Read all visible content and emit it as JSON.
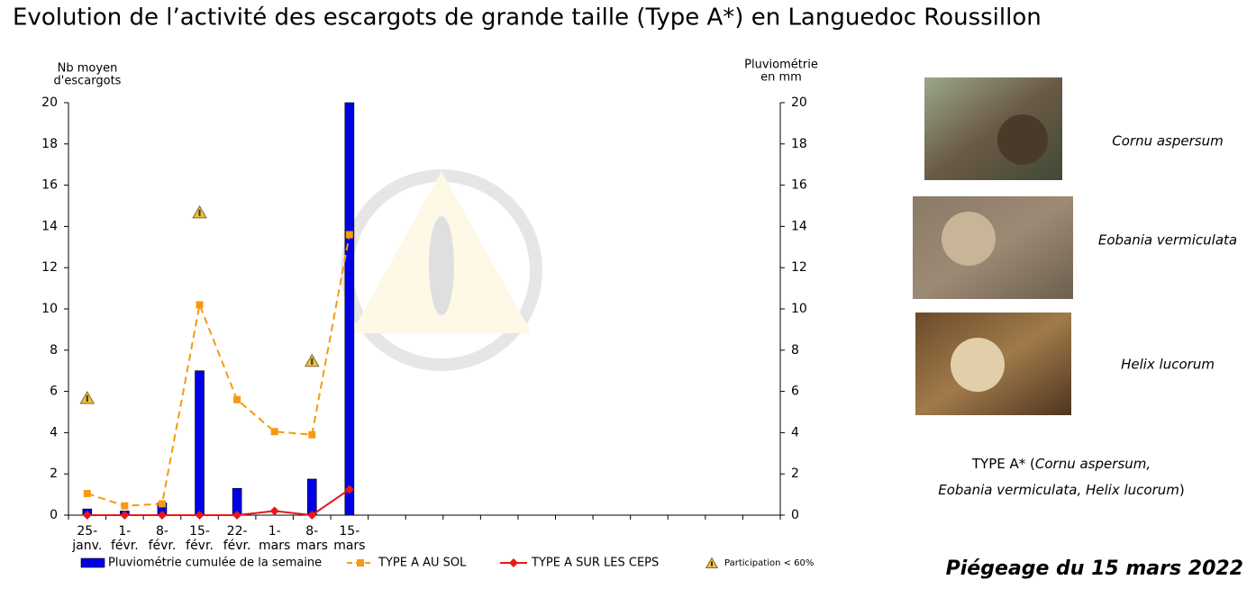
{
  "chart_data": {
    "type": "bar",
    "title": "Evolution de l’activité des escargots de grande taille (Type A*) en Languedoc Roussillon",
    "y_label": [
      "Nb moyen",
      "d'escargots"
    ],
    "y2_label": [
      "Pluviométrie",
      "en mm"
    ],
    "categories": [
      [
        "25-",
        "janv."
      ],
      [
        "1-",
        "févr."
      ],
      [
        "8-",
        "févr."
      ],
      [
        "15-",
        "févr."
      ],
      [
        "22-",
        "févr."
      ],
      [
        "1-",
        "mars"
      ],
      [
        "8-",
        "mars"
      ],
      [
        "15-",
        "mars"
      ],
      null,
      null,
      null,
      null,
      null,
      null,
      null,
      null,
      null,
      null,
      null
    ],
    "ylim": [
      0,
      20
    ],
    "yticks": [
      0,
      2,
      4,
      6,
      8,
      10,
      12,
      14,
      16,
      18,
      20
    ],
    "y2lim": [
      0,
      20
    ],
    "y2ticks": [
      0,
      2,
      4,
      6,
      8,
      10,
      12,
      14,
      16,
      18,
      20
    ],
    "series": [
      {
        "name": "Pluviométrie cumulée de la semaine",
        "kind": "bar",
        "axis": "y2",
        "color": "#0000e6",
        "values": [
          0.3,
          0.2,
          0.6,
          7,
          1.3,
          0,
          1.75,
          20,
          null,
          null,
          null,
          null,
          null,
          null,
          null,
          null,
          null,
          null,
          null
        ]
      },
      {
        "name": "TYPE A AU SOL",
        "kind": "line",
        "dashed": true,
        "marker": "square",
        "color": "#f59a12",
        "values": [
          1.05,
          0.45,
          0.55,
          10.2,
          5.6,
          4.05,
          3.9,
          13.6,
          null,
          null,
          null,
          null,
          null,
          null,
          null,
          null,
          null,
          null,
          null
        ]
      },
      {
        "name": "TYPE A SUR LES CEPS",
        "kind": "line",
        "dashed": false,
        "marker": "diamond",
        "color": "#e81818",
        "values": [
          0,
          0,
          0,
          0,
          0,
          0.2,
          0,
          1.25,
          null,
          null,
          null,
          null,
          null,
          null,
          null,
          null,
          null,
          null,
          null
        ]
      },
      {
        "name": "Participation < 60%",
        "kind": "warning",
        "color": "#f2c12e",
        "values": [
          5.7,
          null,
          null,
          14.7,
          null,
          null,
          7.5,
          null,
          null,
          null,
          null,
          null,
          null,
          null,
          null,
          null,
          null,
          null,
          null
        ]
      }
    ]
  },
  "species": [
    "Cornu aspersum",
    "Eobania vermiculata",
    "Helix lucorum"
  ],
  "type_note": {
    "prefix": "TYPE A* (",
    "line1_italic": "Cornu aspersum,",
    "line2_italic": "Eobania vermiculata, Helix lucorum",
    "suffix": ")"
  },
  "footer": "Piégeage du 15 mars 2022"
}
